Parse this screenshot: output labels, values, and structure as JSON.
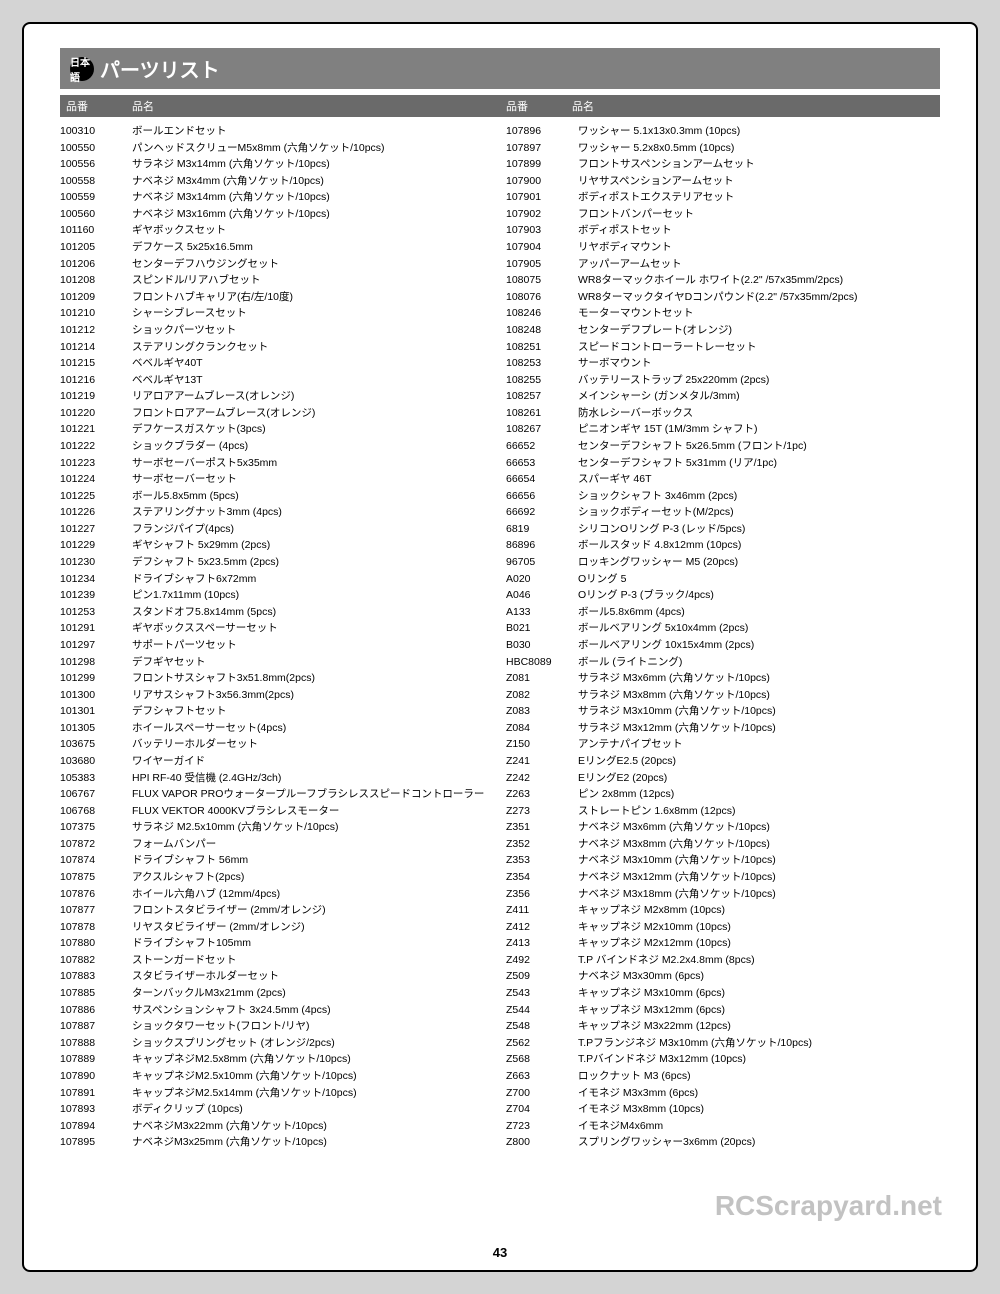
{
  "title": "パーツリスト",
  "lang_badge": "日本語",
  "header_partnum": "品番",
  "header_partname": "品名",
  "page_number": "43",
  "watermark": "RCScrapyard.net",
  "left": [
    {
      "n": "100310",
      "d": "ボールエンドセット"
    },
    {
      "n": "100550",
      "d": "パンヘッドスクリューM5x8mm (六角ソケット/10pcs)"
    },
    {
      "n": "100556",
      "d": "サラネジ M3x14mm (六角ソケット/10pcs)"
    },
    {
      "n": "100558",
      "d": "ナベネジ M3x4mm (六角ソケット/10pcs)"
    },
    {
      "n": "100559",
      "d": "ナベネジ M3x14mm (六角ソケット/10pcs)"
    },
    {
      "n": "100560",
      "d": "ナベネジ M3x16mm (六角ソケット/10pcs)"
    },
    {
      "n": "101160",
      "d": "ギヤボックスセット"
    },
    {
      "n": "101205",
      "d": "デフケース 5x25x16.5mm"
    },
    {
      "n": "101206",
      "d": "センターデフハウジングセット"
    },
    {
      "n": "101208",
      "d": "スピンドル/リアハブセット"
    },
    {
      "n": "101209",
      "d": "フロントハブキャリア(右/左/10度)"
    },
    {
      "n": "101210",
      "d": "シャーシブレースセット"
    },
    {
      "n": "101212",
      "d": "ショックパーツセット"
    },
    {
      "n": "101214",
      "d": "ステアリングクランクセット"
    },
    {
      "n": "101215",
      "d": "ベベルギヤ40T"
    },
    {
      "n": "101216",
      "d": "ベベルギヤ13T"
    },
    {
      "n": "101219",
      "d": "リアロアアームブレース(オレンジ)"
    },
    {
      "n": "101220",
      "d": "フロントロアアームブレース(オレンジ)"
    },
    {
      "n": "101221",
      "d": "デフケースガスケット(3pcs)"
    },
    {
      "n": "101222",
      "d": "ショックブラダー (4pcs)"
    },
    {
      "n": "101223",
      "d": "サーボセーバーポスト5x35mm"
    },
    {
      "n": "101224",
      "d": "サーボセーバーセット"
    },
    {
      "n": "101225",
      "d": "ボール5.8x5mm (5pcs)"
    },
    {
      "n": "101226",
      "d": "ステアリングナット3mm (4pcs)"
    },
    {
      "n": "101227",
      "d": "フランジパイプ(4pcs)"
    },
    {
      "n": "101229",
      "d": "ギヤシャフト 5x29mm (2pcs)"
    },
    {
      "n": "101230",
      "d": "デフシャフト 5x23.5mm (2pcs)"
    },
    {
      "n": "101234",
      "d": "ドライブシャフト6x72mm"
    },
    {
      "n": "101239",
      "d": "ピン1.7x11mm (10pcs)"
    },
    {
      "n": "101253",
      "d": "スタンドオフ5.8x14mm (5pcs)"
    },
    {
      "n": "101291",
      "d": "ギヤボックススペーサーセット"
    },
    {
      "n": "101297",
      "d": "サポートパーツセット"
    },
    {
      "n": "101298",
      "d": "デフギヤセット"
    },
    {
      "n": "101299",
      "d": "フロントサスシャフト3x51.8mm(2pcs)"
    },
    {
      "n": "101300",
      "d": "リアサスシャフト3x56.3mm(2pcs)"
    },
    {
      "n": "101301",
      "d": "デフシャフトセット"
    },
    {
      "n": "101305",
      "d": "ホイールスペーサーセット(4pcs)"
    },
    {
      "n": "103675",
      "d": "バッテリーホルダーセット"
    },
    {
      "n": "103680",
      "d": "ワイヤーガイド"
    },
    {
      "n": "105383",
      "d": "HPI RF-40 受信機 (2.4GHz/3ch)"
    },
    {
      "n": "106767",
      "d": "FLUX VAPOR PROウォータープルーフブラシレススピードコントローラー"
    },
    {
      "n": "106768",
      "d": "FLUX VEKTOR 4000KVブラシレスモーター"
    },
    {
      "n": "107375",
      "d": "サラネジ M2.5x10mm (六角ソケット/10pcs)"
    },
    {
      "n": "107872",
      "d": "フォームバンパー"
    },
    {
      "n": "107874",
      "d": "ドライブシャフト 56mm"
    },
    {
      "n": "107875",
      "d": "アクスルシャフト(2pcs)"
    },
    {
      "n": "107876",
      "d": "ホイール六角ハブ (12mm/4pcs)"
    },
    {
      "n": "107877",
      "d": "フロントスタビライザー (2mm/オレンジ)"
    },
    {
      "n": "107878",
      "d": "リヤスタビライザー (2mm/オレンジ)"
    },
    {
      "n": "107880",
      "d": "ドライブシャフト105mm"
    },
    {
      "n": "107882",
      "d": "ストーンガードセット"
    },
    {
      "n": "107883",
      "d": "スタビライザーホルダーセット"
    },
    {
      "n": "107885",
      "d": "ターンバックルM3x21mm (2pcs)"
    },
    {
      "n": "107886",
      "d": "サスペンションシャフト 3x24.5mm (4pcs)"
    },
    {
      "n": "107887",
      "d": "ショックタワーセット(フロント/リヤ)"
    },
    {
      "n": "107888",
      "d": "ショックスプリングセット (オレンジ/2pcs)"
    },
    {
      "n": "107889",
      "d": "キャップネジM2.5x8mm (六角ソケット/10pcs)"
    },
    {
      "n": "107890",
      "d": "キャップネジM2.5x10mm (六角ソケット/10pcs)"
    },
    {
      "n": "107891",
      "d": "キャップネジM2.5x14mm (六角ソケット/10pcs)"
    },
    {
      "n": "107893",
      "d": "ボディクリップ (10pcs)"
    },
    {
      "n": "107894",
      "d": "ナベネジM3x22mm (六角ソケット/10pcs)"
    },
    {
      "n": "107895",
      "d": "ナベネジM3x25mm (六角ソケット/10pcs)"
    }
  ],
  "right": [
    {
      "n": "107896",
      "d": "ワッシャー 5.1x13x0.3mm (10pcs)"
    },
    {
      "n": "107897",
      "d": "ワッシャー 5.2x8x0.5mm (10pcs)"
    },
    {
      "n": "107899",
      "d": "フロントサスペンションアームセット"
    },
    {
      "n": "107900",
      "d": "リヤサスペンションアームセット"
    },
    {
      "n": "107901",
      "d": "ボディポストエクステリアセット"
    },
    {
      "n": "107902",
      "d": "フロントバンパーセット"
    },
    {
      "n": "107903",
      "d": "ボディポストセット"
    },
    {
      "n": "107904",
      "d": "リヤボディマウント"
    },
    {
      "n": "107905",
      "d": "アッパーアームセット"
    },
    {
      "n": "108075",
      "d": "WR8ターマックホイール ホワイト(2.2\" /57x35mm/2pcs)"
    },
    {
      "n": "108076",
      "d": "WR8ターマックタイヤDコンパウンド(2.2\" /57x35mm/2pcs)"
    },
    {
      "n": "108246",
      "d": "モーターマウントセット"
    },
    {
      "n": "108248",
      "d": "センターデフプレート(オレンジ)"
    },
    {
      "n": "108251",
      "d": "スピードコントローラートレーセット"
    },
    {
      "n": "108253",
      "d": "サーボマウント"
    },
    {
      "n": "108255",
      "d": "バッテリーストラップ 25x220mm (2pcs)"
    },
    {
      "n": "108257",
      "d": "メインシャーシ (ガンメタル/3mm)"
    },
    {
      "n": "108261",
      "d": "防水レシーバーボックス"
    },
    {
      "n": "108267",
      "d": "ピニオンギヤ 15T (1M/3mm シャフト)"
    },
    {
      "n": "66652",
      "d": "センターデフシャフト 5x26.5mm (フロント/1pc)"
    },
    {
      "n": "66653",
      "d": "センターデフシャフト 5x31mm (リア/1pc)"
    },
    {
      "n": "66654",
      "d": "スパーギヤ 46T"
    },
    {
      "n": "66656",
      "d": "ショックシャフト 3x46mm (2pcs)"
    },
    {
      "n": "66692",
      "d": "ショックボディーセット(M/2pcs)"
    },
    {
      "n": "6819",
      "d": "シリコンOリング P-3 (レッド/5pcs)"
    },
    {
      "n": "86896",
      "d": "ボールスタッド 4.8x12mm (10pcs)"
    },
    {
      "n": "96705",
      "d": "ロッキングワッシャー M5 (20pcs)"
    },
    {
      "n": "A020",
      "d": "Oリング 5"
    },
    {
      "n": "A046",
      "d": "Oリング P-3 (ブラック/4pcs)"
    },
    {
      "n": "A133",
      "d": "ボール5.8x6mm (4pcs)"
    },
    {
      "n": "B021",
      "d": "ボールベアリング 5x10x4mm (2pcs)"
    },
    {
      "n": "B030",
      "d": "ボールベアリング 10x15x4mm (2pcs)"
    },
    {
      "n": "HBC8089",
      "d": "ボール (ライトニング)"
    },
    {
      "n": "Z081",
      "d": "サラネジ M3x6mm (六角ソケット/10pcs)"
    },
    {
      "n": "Z082",
      "d": "サラネジ M3x8mm (六角ソケット/10pcs)"
    },
    {
      "n": "Z083",
      "d": "サラネジ M3x10mm (六角ソケット/10pcs)"
    },
    {
      "n": "Z084",
      "d": "サラネジ M3x12mm (六角ソケット/10pcs)"
    },
    {
      "n": "Z150",
      "d": "アンテナパイプセット"
    },
    {
      "n": "Z241",
      "d": "EリングE2.5 (20pcs)"
    },
    {
      "n": "Z242",
      "d": "EリングE2 (20pcs)"
    },
    {
      "n": "Z263",
      "d": "ピン 2x8mm (12pcs)"
    },
    {
      "n": "Z273",
      "d": "ストレートピン 1.6x8mm (12pcs)"
    },
    {
      "n": "Z351",
      "d": "ナベネジ M3x6mm (六角ソケット/10pcs)"
    },
    {
      "n": "Z352",
      "d": "ナベネジ M3x8mm (六角ソケット/10pcs)"
    },
    {
      "n": "Z353",
      "d": "ナベネジ M3x10mm (六角ソケット/10pcs)"
    },
    {
      "n": "Z354",
      "d": "ナベネジ M3x12mm (六角ソケット/10pcs)"
    },
    {
      "n": "Z356",
      "d": "ナベネジ M3x18mm (六角ソケット/10pcs)"
    },
    {
      "n": "Z411",
      "d": "キャップネジ M2x8mm (10pcs)"
    },
    {
      "n": "Z412",
      "d": "キャップネジ M2x10mm (10pcs)"
    },
    {
      "n": "Z413",
      "d": "キャップネジ M2x12mm (10pcs)"
    },
    {
      "n": "Z492",
      "d": "T.P バインドネジ M2.2x4.8mm (8pcs)"
    },
    {
      "n": "Z509",
      "d": "ナベネジ M3x30mm (6pcs)"
    },
    {
      "n": "Z543",
      "d": "キャップネジ M3x10mm (6pcs)"
    },
    {
      "n": "Z544",
      "d": "キャップネジ M3x12mm (6pcs)"
    },
    {
      "n": "Z548",
      "d": "キャップネジ M3x22mm (12pcs)"
    },
    {
      "n": "Z562",
      "d": "T.Pフランジネジ M3x10mm (六角ソケット/10pcs)"
    },
    {
      "n": "Z568",
      "d": "T.Pバインドネジ M3x12mm (10pcs)"
    },
    {
      "n": "Z663",
      "d": "ロックナット M3 (6pcs)"
    },
    {
      "n": "Z700",
      "d": "イモネジ M3x3mm (6pcs)"
    },
    {
      "n": "Z704",
      "d": "イモネジ M3x8mm (10pcs)"
    },
    {
      "n": "Z723",
      "d": "イモネジM4x6mm"
    },
    {
      "n": "Z800",
      "d": "スプリングワッシャー3x6mm (20pcs)"
    }
  ]
}
